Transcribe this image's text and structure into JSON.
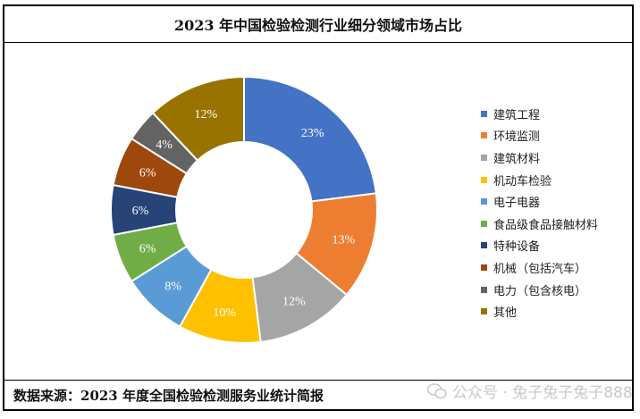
{
  "chart_data": {
    "type": "pie",
    "title": "2023 年中国检验检测行业细分领域市场占比",
    "source": "数据来源：2023 年度全国检验检测服务业统计简报",
    "slices": [
      {
        "label": "建筑工程",
        "value": 23,
        "display": "23%",
        "color": "#4472c4"
      },
      {
        "label": "环境监测",
        "value": 13,
        "display": "13%",
        "color": "#ed7d31"
      },
      {
        "label": "建筑材料",
        "value": 12,
        "display": "12%",
        "color": "#a5a5a5"
      },
      {
        "label": "机动车检验",
        "value": 10,
        "display": "10%",
        "color": "#ffc000"
      },
      {
        "label": "电子电器",
        "value": 8,
        "display": "8%",
        "color": "#5b9bd5"
      },
      {
        "label": "食品级食品接触材料",
        "value": 6,
        "display": "6%",
        "color": "#70ad47"
      },
      {
        "label": "特种设备",
        "value": 6,
        "display": "6%",
        "color": "#264478"
      },
      {
        "label": "机械（包括汽车）",
        "value": 6,
        "display": "6%",
        "color": "#9e480e"
      },
      {
        "label": "电力（包含核电）",
        "value": 4,
        "display": "4%",
        "color": "#636363"
      },
      {
        "label": "其他",
        "value": 12,
        "display": "12%",
        "color": "#997300"
      }
    ],
    "legend_position": "right"
  },
  "watermark": "公众号 · 兔子兔子兔子888"
}
